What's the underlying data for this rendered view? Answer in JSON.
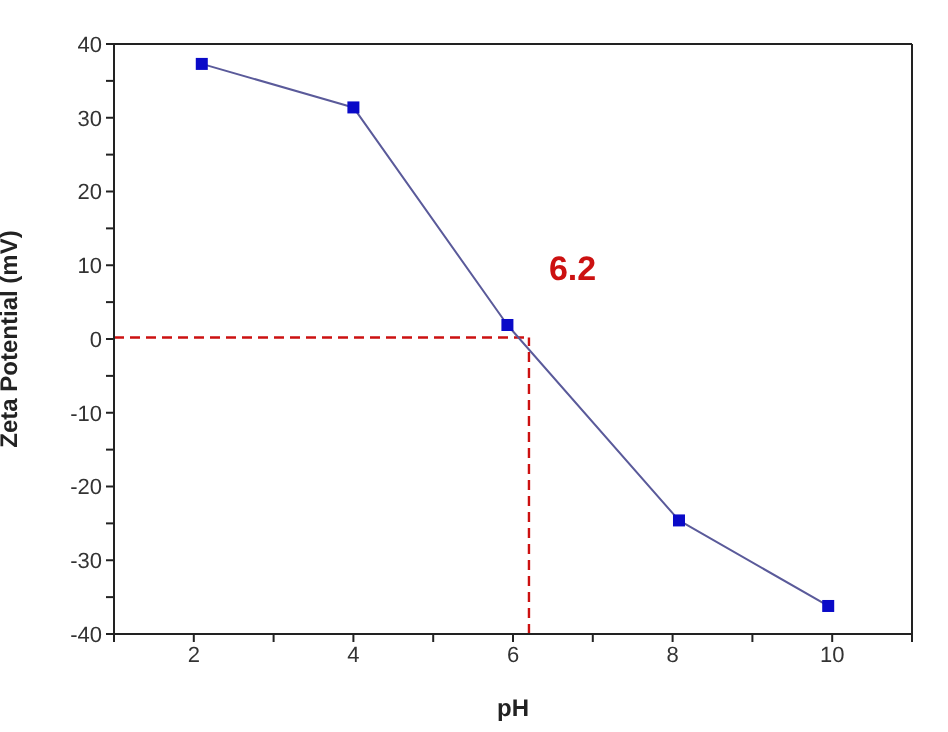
{
  "chart_data": {
    "type": "line",
    "xlabel": "pH",
    "ylabel": "Zeta Potential (mV)",
    "x": [
      2.1,
      4.0,
      5.93,
      8.08,
      9.95
    ],
    "series": [
      {
        "color": "#0a0ac8",
        "values": [
          37.3,
          31.4,
          1.9,
          -24.6,
          -36.2
        ]
      }
    ],
    "xlim": [
      1,
      11
    ],
    "xticks": [
      {
        "value": 1,
        "label": null
      },
      2,
      {
        "value": 3,
        "label": null
      },
      4,
      {
        "value": 5,
        "label": null
      },
      6,
      {
        "value": 7,
        "label": null
      },
      8,
      {
        "value": 9,
        "label": null
      },
      10,
      {
        "value": 11,
        "label": null
      }
    ],
    "ylim": [
      -40,
      40
    ],
    "yticks": [
      -40,
      {
        "value": -35,
        "label": null
      },
      -30,
      {
        "value": -25,
        "label": null
      },
      -20,
      {
        "value": -15,
        "label": null
      },
      -10,
      {
        "value": -5,
        "label": null
      },
      0,
      {
        "value": 5,
        "label": null
      },
      10,
      {
        "value": 15,
        "label": null
      },
      20,
      {
        "value": 25,
        "label": null
      },
      30,
      {
        "value": 35,
        "label": null
      },
      40
    ],
    "ref_lines": [
      {
        "axis": "x",
        "value": 6.2,
        "label": "6.2",
        "color": "#cc1111",
        "line_style": "dashed"
      },
      {
        "axis": "y",
        "value": 0.2,
        "color": "#cc1111",
        "line_style": "dashed"
      }
    ],
    "marker": "square",
    "line_style": "solid"
  }
}
